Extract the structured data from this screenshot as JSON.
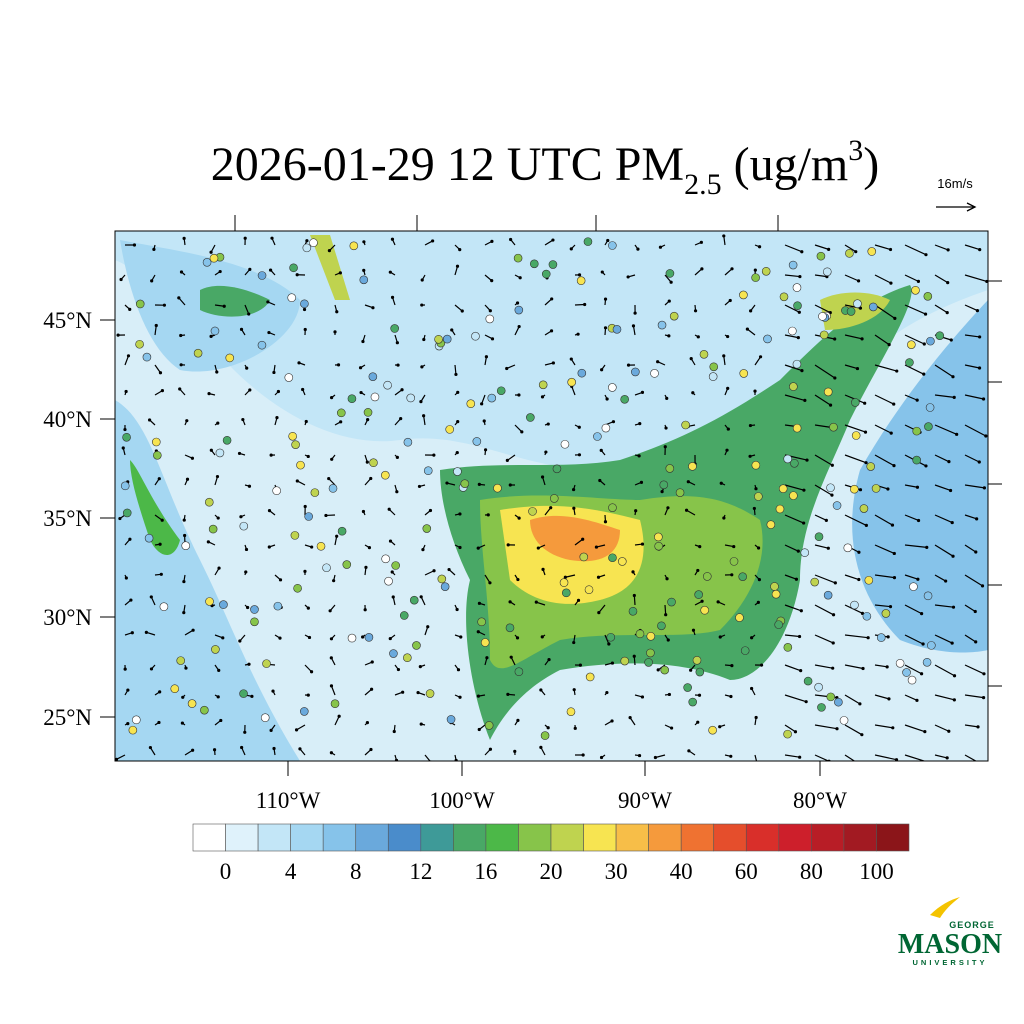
{
  "title": {
    "main": "2026-01-29 12 UTC PM",
    "subscript": "2.5",
    "units_open": " (ug/m",
    "superscript": "3",
    "units_close": ")"
  },
  "wind_scale": "16m/s",
  "latitude_labels": [
    "45°N",
    "40°N",
    "35°N",
    "30°N",
    "25°N"
  ],
  "longitude_labels": [
    "110°W",
    "100°W",
    "90°W",
    "80°W"
  ],
  "colorbar": {
    "colors": [
      "#ffffff",
      "#dff2fb",
      "#c3e6f7",
      "#a5d7f2",
      "#86c3ea",
      "#6aa9dc",
      "#4a8ccb",
      "#3e9a98",
      "#49a866",
      "#4cb848",
      "#87c44a",
      "#bfd34f",
      "#f7e451",
      "#f7be48",
      "#f59a3c",
      "#ef7231",
      "#e54e2c",
      "#d92f2a",
      "#cd1f2b",
      "#b81d26",
      "#a21a22",
      "#8b1519"
    ],
    "labels": [
      0,
      4,
      8,
      12,
      16,
      20,
      30,
      40,
      60,
      80,
      100
    ]
  },
  "logo": {
    "top": "GEORGE",
    "name": "MASON",
    "bottom": "UNIVERSITY"
  }
}
